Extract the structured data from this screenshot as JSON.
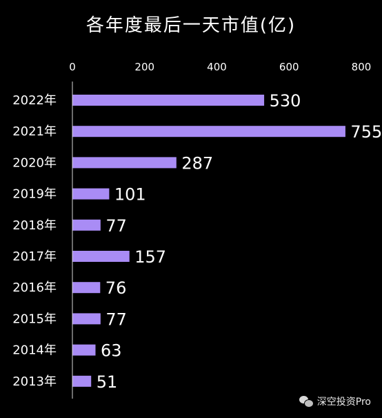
{
  "chart_data": {
    "type": "bar",
    "orientation": "horizontal",
    "title": "各年度最后一天市值(亿)",
    "categories": [
      "2022年",
      "2021年",
      "2020年",
      "2019年",
      "2018年",
      "2017年",
      "2016年",
      "2015年",
      "2014年",
      "2013年"
    ],
    "values": [
      530,
      755,
      287,
      101,
      77,
      157,
      76,
      77,
      63,
      51
    ],
    "xlim": [
      0,
      800
    ],
    "xticks": [
      0,
      200,
      400,
      600,
      800
    ],
    "x_axis_position": "top",
    "grid": false,
    "legend": "none",
    "data_labels": true,
    "bar_color": "#a98cf5",
    "background_color": "#000000",
    "text_color": "#ffffff"
  },
  "watermark": {
    "text": "深空投资Pro",
    "icon": "wechat-icon"
  }
}
